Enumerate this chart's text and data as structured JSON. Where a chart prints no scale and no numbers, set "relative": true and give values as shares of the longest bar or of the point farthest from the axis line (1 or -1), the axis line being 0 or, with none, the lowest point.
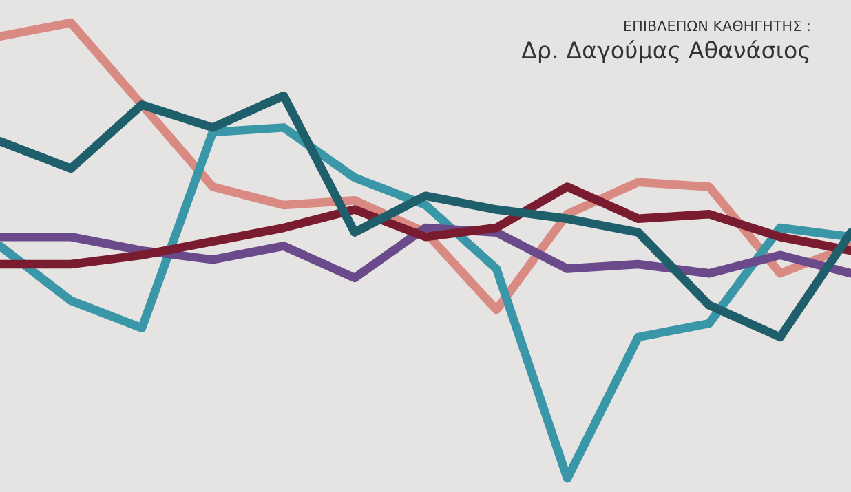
{
  "chart_data": {
    "type": "line",
    "relative": true,
    "categories": [
      null,
      null,
      null,
      null,
      null,
      null,
      null,
      null,
      null,
      null,
      null,
      null,
      null
    ],
    "series": [
      {
        "color": "#d98b83",
        "values": [
          0.97,
          1.0,
          0.82,
          0.64,
          0.6,
          0.61,
          0.54,
          0.37,
          0.58,
          0.65,
          0.64,
          0.45,
          0.51
        ]
      },
      {
        "color": "#3a97a8",
        "values": [
          0.51,
          0.39,
          0.33,
          0.76,
          0.77,
          0.66,
          0.6,
          0.46,
          0.0,
          0.31,
          0.34,
          0.55,
          0.53
        ]
      },
      {
        "color": "#6b4a8c",
        "values": [
          0.53,
          0.53,
          0.5,
          0.48,
          0.51,
          0.44,
          0.55,
          0.54,
          0.46,
          0.47,
          0.45,
          0.49,
          0.45
        ]
      },
      {
        "color": "#7a1c30",
        "values": [
          0.47,
          0.47,
          0.49,
          0.52,
          0.55,
          0.59,
          0.53,
          0.55,
          0.64,
          0.57,
          0.58,
          0.53,
          0.5
        ]
      },
      {
        "color": "#1f5f6b",
        "values": [
          0.74,
          0.68,
          0.82,
          0.77,
          0.84,
          0.54,
          0.62,
          0.59,
          0.57,
          0.54,
          0.38,
          0.31,
          0.54
        ]
      }
    ],
    "annotations": [
      "ΕΠΙΒΛΕΠΩΝ ΚΑΘΗΓΗΤΗΣ :",
      "Δρ. Δαγούμας Αθανάσιος"
    ],
    "grid": false,
    "legend": false,
    "line_style": "solid"
  }
}
